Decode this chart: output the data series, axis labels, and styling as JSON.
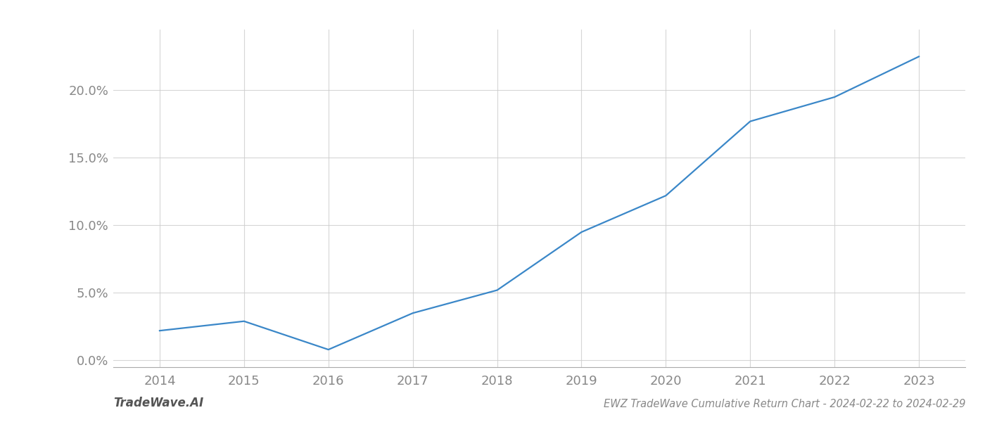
{
  "x_years": [
    2014,
    2015,
    2016,
    2017,
    2018,
    2019,
    2020,
    2021,
    2022,
    2023
  ],
  "y_values": [
    2.2,
    2.9,
    0.8,
    3.5,
    5.2,
    9.5,
    12.2,
    17.7,
    19.5,
    22.5
  ],
  "line_color": "#3a87c8",
  "line_width": 1.6,
  "title": "EWZ TradeWave Cumulative Return Chart - 2024-02-22 to 2024-02-29",
  "watermark_left": "TradeWave.AI",
  "ylim_min": -0.5,
  "ylim_max": 24.5,
  "xlim_min": 2013.45,
  "xlim_max": 2023.55,
  "ytick_values": [
    0.0,
    5.0,
    10.0,
    15.0,
    20.0
  ],
  "xtick_values": [
    2014,
    2015,
    2016,
    2017,
    2018,
    2019,
    2020,
    2021,
    2022,
    2023
  ],
  "grid_color": "#cccccc",
  "grid_alpha": 0.8,
  "background_color": "#ffffff",
  "title_fontsize": 10.5,
  "tick_fontsize": 13,
  "watermark_fontsize": 12,
  "spine_color": "#aaaaaa",
  "tick_color": "#888888"
}
